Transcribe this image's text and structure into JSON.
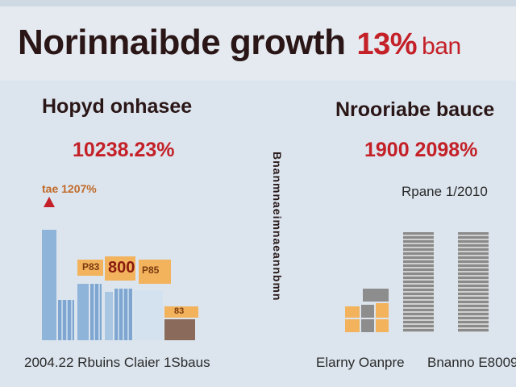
{
  "header": {
    "title": "Norinnaibde growth",
    "highlight": "13%",
    "highlight_tail": "ban"
  },
  "left_panel": {
    "title": "Hopyd onhasee",
    "value": "10238.23%",
    "marker_label": "tae 1207%",
    "box_labels": [
      "P83",
      "800",
      "P85",
      "83"
    ],
    "footer": "2004.22 Rbuins Claier 1Sbaus"
  },
  "divider": {
    "vertical_text": "Bnanmnaeimnaeannbmn"
  },
  "right_panel": {
    "title": "Nrooriabe bauce",
    "value": "1900 2098%",
    "subtitle": "Rpane 1/2010",
    "footer_left": "Elarny Oanpre",
    "footer_right": "Bnanno E8009"
  },
  "colors": {
    "accent_red": "#c42027",
    "bar_blue": "#8fb4d9",
    "bar_orange": "#f2b35c",
    "bar_gray": "#8d8d8d",
    "background": "#dce5ee"
  }
}
